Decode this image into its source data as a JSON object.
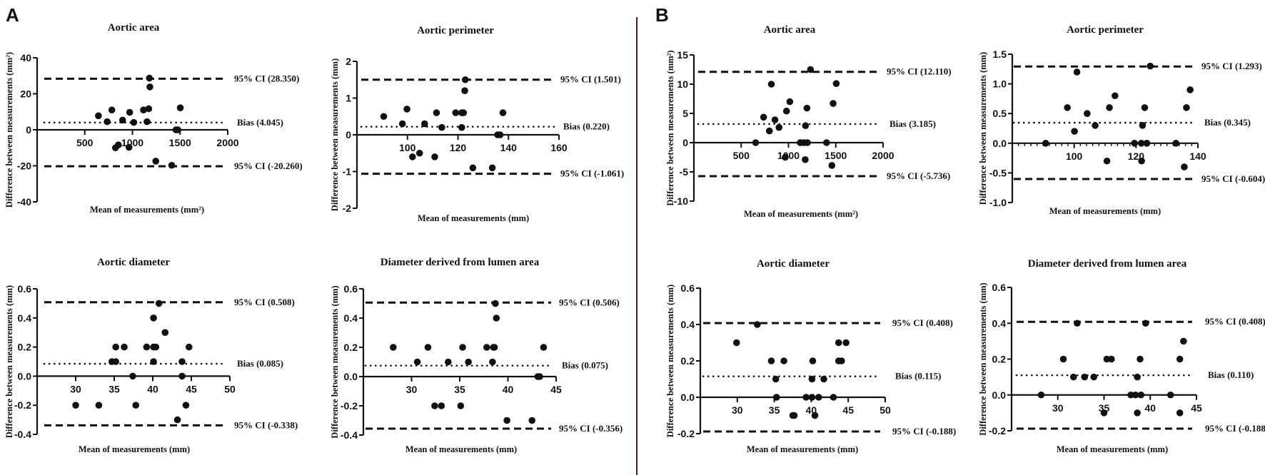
{
  "panel_labels": [
    "A",
    "B"
  ],
  "colors": {
    "ink": "#111111",
    "divider": "#5a1a1a"
  },
  "chart_data": [
    {
      "type": "scatter",
      "panel": "A",
      "title": "Aortic area",
      "xlabel": "Mean of measurements (mm²)",
      "ylabel": "Difference between measurements (mm²)",
      "xlim": [
        0,
        2000
      ],
      "ylim": [
        -40,
        40
      ],
      "xticks": [
        500,
        1000,
        1500,
        2000
      ],
      "yticks": [
        "40",
        "20",
        "0",
        "-20",
        "-40"
      ],
      "bias": 4.045,
      "upper": 28.35,
      "lower": -20.26,
      "bias_label": "Bias (4.045)",
      "upper_label": "95% CI (28.350)",
      "lower_label": "95% CI (-20.260)",
      "points": [
        [
          643,
          7.8
        ],
        [
          735,
          4.5
        ],
        [
          784,
          11
        ],
        [
          897,
          5.4
        ],
        [
          971,
          9.7
        ],
        [
          1014,
          4.1
        ],
        [
          822,
          -10
        ],
        [
          852,
          -8.4
        ],
        [
          964,
          -9.7
        ],
        [
          1116,
          11
        ],
        [
          1171,
          11.7
        ],
        [
          1153,
          4.5
        ],
        [
          1178,
          28.7
        ],
        [
          1183,
          23.8
        ],
        [
          1245,
          -17.4
        ],
        [
          1412,
          -19.7
        ],
        [
          1457,
          0
        ],
        [
          1477,
          0
        ],
        [
          1502,
          12.2
        ]
      ]
    },
    {
      "type": "scatter",
      "panel": "A",
      "title": "Aortic perimeter",
      "xlabel": "Mean of measurements (mm)",
      "ylabel": "Difference between measurements (mm)",
      "xlim": [
        80,
        160
      ],
      "ylim": [
        -2,
        2
      ],
      "xticks": [
        100,
        120,
        140,
        160
      ],
      "yticks": [
        "2",
        "1",
        "0",
        "-1",
        "-2"
      ],
      "bias": 0.22,
      "upper": 1.501,
      "lower": -1.061,
      "bias_label": "Bias (0.220)",
      "upper_label": "95% CI (1.501)",
      "lower_label": "95% CI (-1.061)",
      "points": [
        [
          90.6,
          0.5
        ],
        [
          98,
          0.3
        ],
        [
          99.8,
          0.7
        ],
        [
          102,
          -0.6
        ],
        [
          104.8,
          -0.5
        ],
        [
          106.8,
          0.3
        ],
        [
          110.8,
          -0.6
        ],
        [
          111.5,
          0.6
        ],
        [
          113.6,
          0.2
        ],
        [
          119.1,
          0.6
        ],
        [
          121.5,
          0.6
        ],
        [
          122.2,
          0.6
        ],
        [
          121.5,
          0.2
        ],
        [
          122.7,
          1.2
        ],
        [
          122.9,
          1.5
        ],
        [
          125.9,
          -0.9
        ],
        [
          133.6,
          -0.9
        ],
        [
          135.7,
          0
        ],
        [
          136.7,
          0
        ],
        [
          137.8,
          0.6
        ]
      ]
    },
    {
      "type": "scatter",
      "panel": "A",
      "title": "Aortic diameter",
      "xlabel": "Mean of measurements (mm)",
      "ylabel": "Difference between measurements (mm)",
      "xlim": [
        25,
        50
      ],
      "ylim": [
        -0.4,
        0.6
      ],
      "xticks": [
        30,
        35,
        40,
        45,
        50
      ],
      "yticks": [
        "0.6",
        "0.4",
        "0.2",
        "0.0",
        "-0.2",
        "-0.4"
      ],
      "bias": 0.085,
      "upper": 0.508,
      "lower": -0.338,
      "bias_label": "Bias (0.085)",
      "upper_label": "95% CI (0.508)",
      "lower_label": "95% CI (-0.338)",
      "points": [
        [
          30,
          -0.2
        ],
        [
          33,
          -0.2
        ],
        [
          34.7,
          0.1
        ],
        [
          35.2,
          0.1
        ],
        [
          35.2,
          0.2
        ],
        [
          36.3,
          0.2
        ],
        [
          37.4,
          0
        ],
        [
          37.8,
          -0.2
        ],
        [
          39.2,
          0.2
        ],
        [
          40.1,
          0.2
        ],
        [
          40.4,
          0.2
        ],
        [
          40.1,
          0.1
        ],
        [
          40.1,
          0.4
        ],
        [
          40.8,
          0.5
        ],
        [
          41.6,
          0.3
        ],
        [
          43.2,
          -0.3
        ],
        [
          43.8,
          0.1
        ],
        [
          43.8,
          0
        ],
        [
          44.3,
          -0.2
        ],
        [
          44.7,
          0.2
        ]
      ]
    },
    {
      "type": "scatter",
      "panel": "A",
      "title": "Diameter derived from lumen area",
      "xlabel": "Mean of measurements (mm)",
      "ylabel": "Difference between measurements (mm)",
      "xlim": [
        25,
        45
      ],
      "ylim": [
        -0.4,
        0.6
      ],
      "xticks": [
        30,
        35,
        40,
        45
      ],
      "yticks": [
        "0.6",
        "0.4",
        "0.2",
        "0.0",
        "-0.2",
        "-0.4"
      ],
      "bias": 0.075,
      "upper": 0.506,
      "lower": -0.356,
      "bias_label": "Bias (0.075)",
      "upper_label": "95% CI (0.506)",
      "lower_label": "95% CI (-0.356)",
      "points": [
        [
          28.1,
          0.2
        ],
        [
          30.6,
          0.1
        ],
        [
          31.7,
          0.2
        ],
        [
          32.4,
          -0.2
        ],
        [
          33.1,
          -0.2
        ],
        [
          33.8,
          0.1
        ],
        [
          35.1,
          -0.2
        ],
        [
          35.3,
          0.2
        ],
        [
          35.9,
          0.1
        ],
        [
          37.8,
          0.2
        ],
        [
          38.4,
          0.1
        ],
        [
          38.5,
          0.2
        ],
        [
          38.6,
          0.2
        ],
        [
          38.8,
          0.4
        ],
        [
          38.7,
          0.5
        ],
        [
          39.9,
          -0.3
        ],
        [
          42.5,
          -0.3
        ],
        [
          43.1,
          0
        ],
        [
          43.3,
          0
        ],
        [
          43.7,
          0.2
        ]
      ]
    },
    {
      "type": "scatter",
      "panel": "B",
      "title": "Aortic area",
      "xlabel": "Mean of measurements (mm²)",
      "ylabel": "Difference between measurements (mm²)",
      "xlim": [
        0,
        2000
      ],
      "ylim": [
        -10,
        15
      ],
      "xticks": [
        500,
        1000,
        1500,
        2000
      ],
      "yticks": [
        "15",
        "10",
        "5",
        "0",
        "-5",
        "-10"
      ],
      "bias": 3.185,
      "upper": 12.11,
      "lower": -5.736,
      "bias_label": "Bias (3.185)",
      "upper_label": "95% CI (12.110)",
      "lower_label": "95% CI (-5.736)",
      "points": [
        [
          653,
          0
        ],
        [
          737,
          4.35
        ],
        [
          798,
          2.0
        ],
        [
          819,
          10
        ],
        [
          857,
          3.9
        ],
        [
          900,
          2.6
        ],
        [
          966,
          -2.5
        ],
        [
          979,
          5.4
        ],
        [
          1014,
          7.0
        ],
        [
          1124,
          0
        ],
        [
          1162,
          0
        ],
        [
          1200,
          0
        ],
        [
          1180,
          2.9
        ],
        [
          1177,
          -2.9
        ],
        [
          1195,
          5.9
        ],
        [
          1233,
          12.5
        ],
        [
          1403,
          0
        ],
        [
          1459,
          -3.9
        ],
        [
          1472,
          6.7
        ],
        [
          1505,
          10.1
        ]
      ]
    },
    {
      "type": "scatter",
      "panel": "B",
      "title": "Aortic perimeter",
      "xlabel": "Mean of measurements (mm)",
      "ylabel": "Difference between measurements (mm)",
      "xlim": [
        80,
        140
      ],
      "ylim": [
        -1.0,
        1.5
      ],
      "xticks": [
        100,
        120,
        140
      ],
      "yticks": [
        "1.5",
        "1.0",
        "0.5",
        "0.0",
        "-0.5",
        "-1.0"
      ],
      "bias": 0.345,
      "upper": 1.293,
      "lower": -0.604,
      "bias_label": "Bias (0.345)",
      "upper_label": "95% CI (1.293)",
      "lower_label": "95% CI (-0.604)",
      "points": [
        [
          90.8,
          0
        ],
        [
          97.8,
          0.6
        ],
        [
          100.1,
          0.2
        ],
        [
          100.9,
          1.2
        ],
        [
          104.2,
          0.5
        ],
        [
          106.8,
          0.3
        ],
        [
          110.6,
          -0.3
        ],
        [
          111.4,
          0.6
        ],
        [
          113.2,
          0.8
        ],
        [
          119.5,
          0
        ],
        [
          121.7,
          0
        ],
        [
          121.8,
          -0.3
        ],
        [
          122.1,
          0.3
        ],
        [
          122.8,
          0.6
        ],
        [
          123.5,
          0
        ],
        [
          124.6,
          1.3
        ],
        [
          132.9,
          0
        ],
        [
          135.6,
          -0.4
        ],
        [
          136.3,
          0.6
        ],
        [
          137.5,
          0.9
        ]
      ]
    },
    {
      "type": "scatter",
      "panel": "B",
      "title": "Aortic diameter",
      "xlabel": "Mean of measurements (mm)",
      "ylabel": "Difference between measurements (mm)",
      "xlim": [
        25,
        50
      ],
      "ylim": [
        -0.2,
        0.6
      ],
      "xticks": [
        30,
        35,
        40,
        45,
        50
      ],
      "yticks": [
        "0.6",
        "0.4",
        "0.2",
        "0.0",
        "-0.2"
      ],
      "bias": 0.115,
      "upper": 0.408,
      "lower": -0.188,
      "bias_label": "Bias (0.115)",
      "upper_label": "95% CI (0.408)",
      "lower_label": "95% CI (-0.188)",
      "points": [
        [
          29.9,
          0.3
        ],
        [
          32.7,
          0.4
        ],
        [
          34.6,
          0.2
        ],
        [
          35.2,
          0.1
        ],
        [
          35.3,
          0
        ],
        [
          36.3,
          0.2
        ],
        [
          37.5,
          -0.1
        ],
        [
          37.7,
          -0.1
        ],
        [
          39.3,
          0
        ],
        [
          40.1,
          0.1
        ],
        [
          40.1,
          0
        ],
        [
          40.2,
          0.2
        ],
        [
          40.5,
          -0.1
        ],
        [
          41.0,
          0
        ],
        [
          41.7,
          0.1
        ],
        [
          43,
          0
        ],
        [
          43.7,
          0.3
        ],
        [
          43.7,
          0.2
        ],
        [
          44.1,
          0.2
        ],
        [
          44.7,
          0.3
        ]
      ]
    },
    {
      "type": "scatter",
      "panel": "B",
      "title": "Diameter derived from lumen area",
      "xlabel": "Mean of measurements (mm)",
      "ylabel": "Difference between measurements (mm)",
      "xlim": [
        25,
        45
      ],
      "ylim": [
        -0.2,
        0.6
      ],
      "xticks": [
        30,
        35,
        40,
        45
      ],
      "yticks": [
        "0.6",
        "0.4",
        "0.2",
        "0.0",
        "-0.2"
      ],
      "bias": 0.11,
      "upper": 0.408,
      "lower": -0.188,
      "bias_label": "Bias (0.110)",
      "upper_label": "95% CI (0.408)",
      "lower_label": "95% CI (-0.188)",
      "points": [
        [
          28.2,
          0
        ],
        [
          30.6,
          0.2
        ],
        [
          31.7,
          0.1
        ],
        [
          32.1,
          0.4
        ],
        [
          32.9,
          0.1
        ],
        [
          33.9,
          0.1
        ],
        [
          35,
          -0.1
        ],
        [
          35.3,
          0.2
        ],
        [
          35.8,
          0.2
        ],
        [
          37.9,
          0
        ],
        [
          38.4,
          0
        ],
        [
          38.6,
          0.1
        ],
        [
          38.6,
          -0.1
        ],
        [
          38.9,
          0.2
        ],
        [
          39,
          0
        ],
        [
          39.5,
          0.4
        ],
        [
          42.2,
          0
        ],
        [
          43.2,
          -0.1
        ],
        [
          43.2,
          0.2
        ],
        [
          43.6,
          0.3
        ]
      ]
    }
  ]
}
